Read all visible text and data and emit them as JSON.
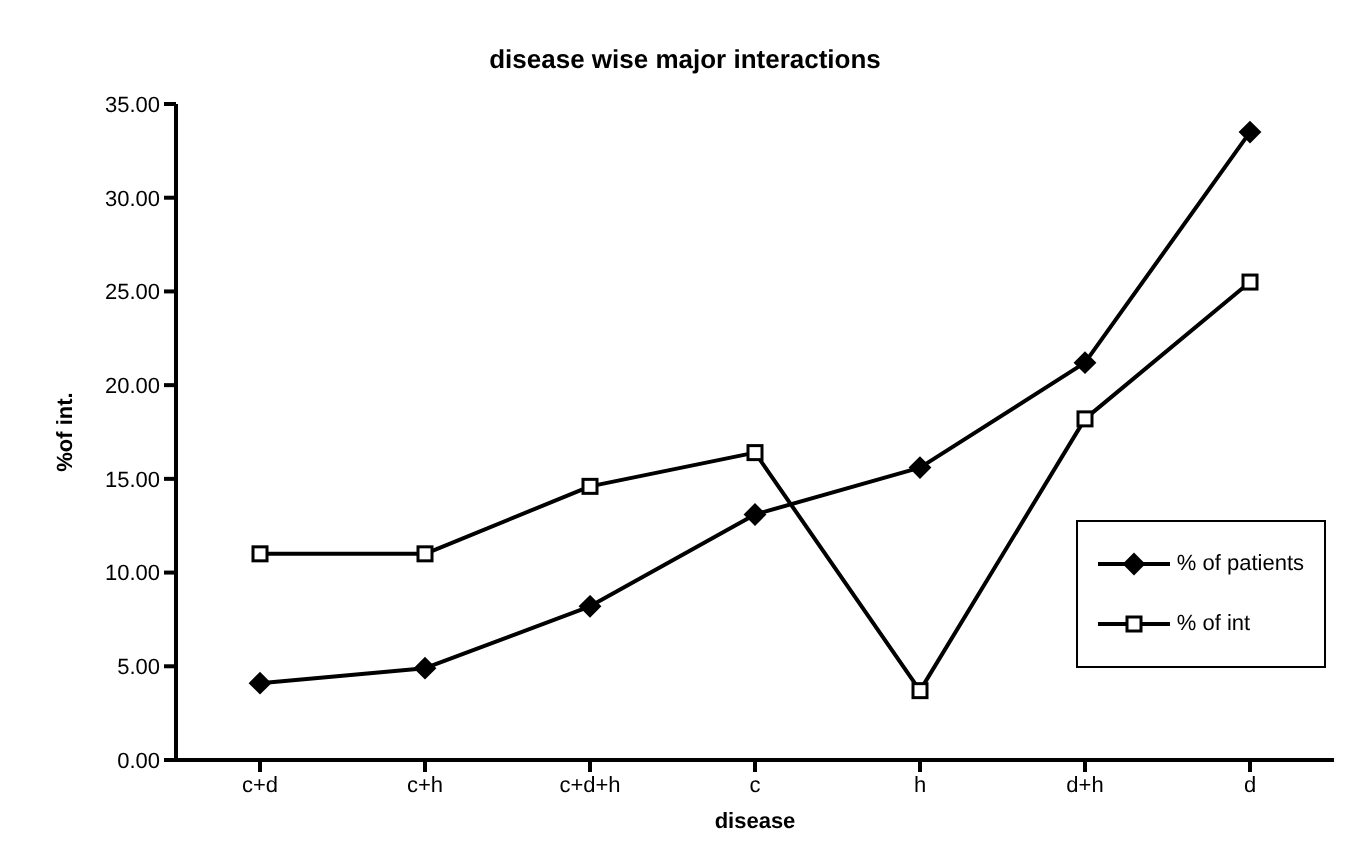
{
  "chart_data": {
    "type": "line",
    "title": "disease wise major interactions",
    "xlabel": "disease",
    "ylabel": "%of int.",
    "categories": [
      "c+d",
      "c+h",
      "c+d+h",
      "c",
      "h",
      "d+h",
      "d"
    ],
    "series": [
      {
        "name": "% of patients",
        "color": "#000000",
        "marker": "diamond",
        "values": [
          4.1,
          4.9,
          8.2,
          13.1,
          15.6,
          21.2,
          33.5
        ]
      },
      {
        "name": "% of int",
        "color": "#000000",
        "marker": "square",
        "values": [
          11.0,
          11.0,
          14.6,
          16.4,
          3.7,
          18.2,
          25.5
        ]
      }
    ],
    "ylim": [
      0,
      35
    ],
    "yticks": [
      {
        "value": 0,
        "label": "0.00"
      },
      {
        "value": 5,
        "label": "5.00"
      },
      {
        "value": 10,
        "label": "10.00"
      },
      {
        "value": 15,
        "label": "15.00"
      },
      {
        "value": 20,
        "label": "20.00"
      },
      {
        "value": 25,
        "label": "25.00"
      },
      {
        "value": 30,
        "label": "30.00"
      },
      {
        "value": 35,
        "label": "35.00"
      }
    ],
    "grid": false,
    "legend": "bottom right",
    "line_style": "solid"
  }
}
